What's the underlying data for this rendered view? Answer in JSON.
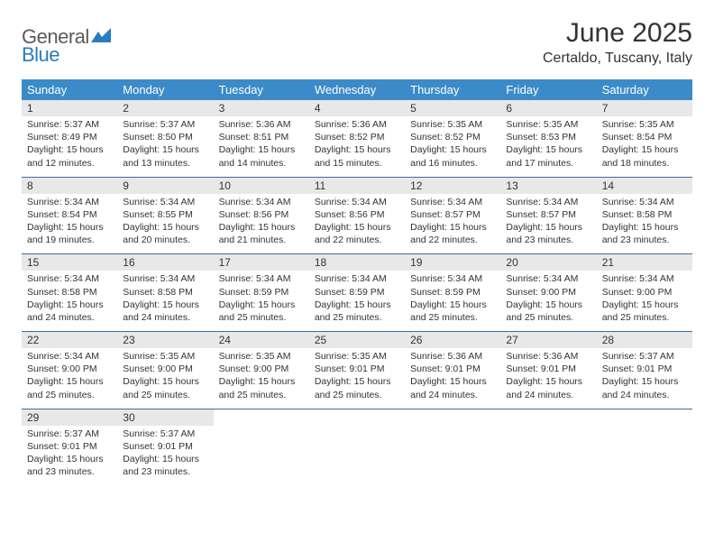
{
  "logo": {
    "text_general": "General",
    "text_blue": "Blue",
    "icon_color": "#2b7bbf"
  },
  "header": {
    "month_title": "June 2025",
    "location": "Certaldo, Tuscany, Italy"
  },
  "colors": {
    "header_bg": "#3b8bc9",
    "header_text": "#ffffff",
    "daynum_bg": "#e8e8e8",
    "row_border": "#3b6fa0",
    "body_text": "#333333",
    "page_bg": "#ffffff"
  },
  "day_headers": [
    "Sunday",
    "Monday",
    "Tuesday",
    "Wednesday",
    "Thursday",
    "Friday",
    "Saturday"
  ],
  "weeks": [
    [
      {
        "num": "1",
        "sunrise": "Sunrise: 5:37 AM",
        "sunset": "Sunset: 8:49 PM",
        "daylight1": "Daylight: 15 hours",
        "daylight2": "and 12 minutes."
      },
      {
        "num": "2",
        "sunrise": "Sunrise: 5:37 AM",
        "sunset": "Sunset: 8:50 PM",
        "daylight1": "Daylight: 15 hours",
        "daylight2": "and 13 minutes."
      },
      {
        "num": "3",
        "sunrise": "Sunrise: 5:36 AM",
        "sunset": "Sunset: 8:51 PM",
        "daylight1": "Daylight: 15 hours",
        "daylight2": "and 14 minutes."
      },
      {
        "num": "4",
        "sunrise": "Sunrise: 5:36 AM",
        "sunset": "Sunset: 8:52 PM",
        "daylight1": "Daylight: 15 hours",
        "daylight2": "and 15 minutes."
      },
      {
        "num": "5",
        "sunrise": "Sunrise: 5:35 AM",
        "sunset": "Sunset: 8:52 PM",
        "daylight1": "Daylight: 15 hours",
        "daylight2": "and 16 minutes."
      },
      {
        "num": "6",
        "sunrise": "Sunrise: 5:35 AM",
        "sunset": "Sunset: 8:53 PM",
        "daylight1": "Daylight: 15 hours",
        "daylight2": "and 17 minutes."
      },
      {
        "num": "7",
        "sunrise": "Sunrise: 5:35 AM",
        "sunset": "Sunset: 8:54 PM",
        "daylight1": "Daylight: 15 hours",
        "daylight2": "and 18 minutes."
      }
    ],
    [
      {
        "num": "8",
        "sunrise": "Sunrise: 5:34 AM",
        "sunset": "Sunset: 8:54 PM",
        "daylight1": "Daylight: 15 hours",
        "daylight2": "and 19 minutes."
      },
      {
        "num": "9",
        "sunrise": "Sunrise: 5:34 AM",
        "sunset": "Sunset: 8:55 PM",
        "daylight1": "Daylight: 15 hours",
        "daylight2": "and 20 minutes."
      },
      {
        "num": "10",
        "sunrise": "Sunrise: 5:34 AM",
        "sunset": "Sunset: 8:56 PM",
        "daylight1": "Daylight: 15 hours",
        "daylight2": "and 21 minutes."
      },
      {
        "num": "11",
        "sunrise": "Sunrise: 5:34 AM",
        "sunset": "Sunset: 8:56 PM",
        "daylight1": "Daylight: 15 hours",
        "daylight2": "and 22 minutes."
      },
      {
        "num": "12",
        "sunrise": "Sunrise: 5:34 AM",
        "sunset": "Sunset: 8:57 PM",
        "daylight1": "Daylight: 15 hours",
        "daylight2": "and 22 minutes."
      },
      {
        "num": "13",
        "sunrise": "Sunrise: 5:34 AM",
        "sunset": "Sunset: 8:57 PM",
        "daylight1": "Daylight: 15 hours",
        "daylight2": "and 23 minutes."
      },
      {
        "num": "14",
        "sunrise": "Sunrise: 5:34 AM",
        "sunset": "Sunset: 8:58 PM",
        "daylight1": "Daylight: 15 hours",
        "daylight2": "and 23 minutes."
      }
    ],
    [
      {
        "num": "15",
        "sunrise": "Sunrise: 5:34 AM",
        "sunset": "Sunset: 8:58 PM",
        "daylight1": "Daylight: 15 hours",
        "daylight2": "and 24 minutes."
      },
      {
        "num": "16",
        "sunrise": "Sunrise: 5:34 AM",
        "sunset": "Sunset: 8:58 PM",
        "daylight1": "Daylight: 15 hours",
        "daylight2": "and 24 minutes."
      },
      {
        "num": "17",
        "sunrise": "Sunrise: 5:34 AM",
        "sunset": "Sunset: 8:59 PM",
        "daylight1": "Daylight: 15 hours",
        "daylight2": "and 25 minutes."
      },
      {
        "num": "18",
        "sunrise": "Sunrise: 5:34 AM",
        "sunset": "Sunset: 8:59 PM",
        "daylight1": "Daylight: 15 hours",
        "daylight2": "and 25 minutes."
      },
      {
        "num": "19",
        "sunrise": "Sunrise: 5:34 AM",
        "sunset": "Sunset: 8:59 PM",
        "daylight1": "Daylight: 15 hours",
        "daylight2": "and 25 minutes."
      },
      {
        "num": "20",
        "sunrise": "Sunrise: 5:34 AM",
        "sunset": "Sunset: 9:00 PM",
        "daylight1": "Daylight: 15 hours",
        "daylight2": "and 25 minutes."
      },
      {
        "num": "21",
        "sunrise": "Sunrise: 5:34 AM",
        "sunset": "Sunset: 9:00 PM",
        "daylight1": "Daylight: 15 hours",
        "daylight2": "and 25 minutes."
      }
    ],
    [
      {
        "num": "22",
        "sunrise": "Sunrise: 5:34 AM",
        "sunset": "Sunset: 9:00 PM",
        "daylight1": "Daylight: 15 hours",
        "daylight2": "and 25 minutes."
      },
      {
        "num": "23",
        "sunrise": "Sunrise: 5:35 AM",
        "sunset": "Sunset: 9:00 PM",
        "daylight1": "Daylight: 15 hours",
        "daylight2": "and 25 minutes."
      },
      {
        "num": "24",
        "sunrise": "Sunrise: 5:35 AM",
        "sunset": "Sunset: 9:00 PM",
        "daylight1": "Daylight: 15 hours",
        "daylight2": "and 25 minutes."
      },
      {
        "num": "25",
        "sunrise": "Sunrise: 5:35 AM",
        "sunset": "Sunset: 9:01 PM",
        "daylight1": "Daylight: 15 hours",
        "daylight2": "and 25 minutes."
      },
      {
        "num": "26",
        "sunrise": "Sunrise: 5:36 AM",
        "sunset": "Sunset: 9:01 PM",
        "daylight1": "Daylight: 15 hours",
        "daylight2": "and 24 minutes."
      },
      {
        "num": "27",
        "sunrise": "Sunrise: 5:36 AM",
        "sunset": "Sunset: 9:01 PM",
        "daylight1": "Daylight: 15 hours",
        "daylight2": "and 24 minutes."
      },
      {
        "num": "28",
        "sunrise": "Sunrise: 5:37 AM",
        "sunset": "Sunset: 9:01 PM",
        "daylight1": "Daylight: 15 hours",
        "daylight2": "and 24 minutes."
      }
    ],
    [
      {
        "num": "29",
        "sunrise": "Sunrise: 5:37 AM",
        "sunset": "Sunset: 9:01 PM",
        "daylight1": "Daylight: 15 hours",
        "daylight2": "and 23 minutes."
      },
      {
        "num": "30",
        "sunrise": "Sunrise: 5:37 AM",
        "sunset": "Sunset: 9:01 PM",
        "daylight1": "Daylight: 15 hours",
        "daylight2": "and 23 minutes."
      },
      {
        "empty": true
      },
      {
        "empty": true
      },
      {
        "empty": true
      },
      {
        "empty": true
      },
      {
        "empty": true
      }
    ]
  ]
}
